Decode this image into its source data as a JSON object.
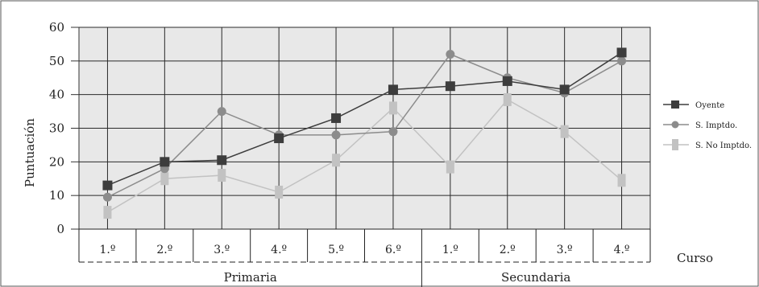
{
  "chart_data": {
    "type": "line",
    "ylabel": "Puntuación",
    "xlabel": "Curso",
    "ylim": [
      0,
      60
    ],
    "yticks": [
      0,
      10,
      20,
      30,
      40,
      50,
      60
    ],
    "grid": true,
    "legend_position": "right",
    "categories": [
      "1.º",
      "2.º",
      "3.º",
      "4.º",
      "5.º",
      "6.º",
      "1.º",
      "2.º",
      "3.º",
      "4.º"
    ],
    "groups": [
      {
        "label": "Primaria",
        "span": 6
      },
      {
        "label": "Secundaria",
        "span": 4
      }
    ],
    "series": [
      {
        "name": "Oyente",
        "marker": "square",
        "color": "#3d3d3d",
        "values": [
          13,
          20,
          20.5,
          27,
          33,
          41.5,
          42.5,
          44,
          41.5,
          52.5
        ]
      },
      {
        "name": "S. Imptdo.",
        "marker": "circle",
        "color": "#8c8c8c",
        "values": [
          9.5,
          18,
          35,
          28,
          28,
          29,
          52,
          45,
          40.5,
          50
        ]
      },
      {
        "name": "S. No Imptdo.",
        "marker": "bar",
        "color": "#c2c2c2",
        "values": [
          5,
          15,
          16,
          11,
          20.5,
          36,
          18.5,
          38.5,
          29,
          14.5
        ]
      }
    ]
  }
}
